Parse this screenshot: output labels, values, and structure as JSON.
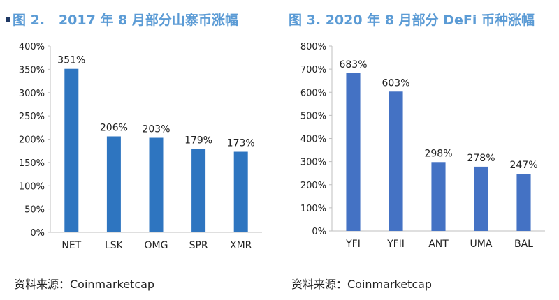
{
  "colors": {
    "title": "#5b9bd5",
    "bar_left": "#2e75c0",
    "bar_right": "#4472c4",
    "axis": "#bfbfbf"
  },
  "left": {
    "title_prefix": "图 2.",
    "title_text": "2017 年 8 月部分山寨币涨幅",
    "source": "资料来源：Coinmarketcap"
  },
  "right": {
    "title_prefix": "图 3.",
    "title_text": "2020 年 8 月部分 DeFi 币种涨幅",
    "source": "资料来源：Coinmarketcap"
  },
  "chart_data": [
    {
      "type": "bar",
      "title": "图 2. 2017 年 8 月部分山寨币涨幅",
      "categories": [
        "NET",
        "LSK",
        "OMG",
        "SPR",
        "XMR"
      ],
      "values": [
        351,
        206,
        203,
        179,
        173
      ],
      "data_labels": [
        "351%",
        "206%",
        "203%",
        "179%",
        "173%"
      ],
      "yticks": [
        "0%",
        "50%",
        "100%",
        "150%",
        "200%",
        "250%",
        "300%",
        "350%",
        "400%"
      ],
      "ylim": [
        0,
        400
      ],
      "grid": false,
      "legend": "none"
    },
    {
      "type": "bar",
      "title": "图 3. 2020 年 8 月部分 DeFi 币种涨幅",
      "categories": [
        "YFI",
        "YFII",
        "ANT",
        "UMA",
        "BAL"
      ],
      "values": [
        683,
        603,
        298,
        278,
        247
      ],
      "data_labels": [
        "683%",
        "603%",
        "298%",
        "278%",
        "247%"
      ],
      "yticks": [
        "0%",
        "100%",
        "200%",
        "300%",
        "400%",
        "500%",
        "600%",
        "700%",
        "800%"
      ],
      "ylim": [
        0,
        800
      ],
      "grid": false,
      "legend": "none"
    }
  ]
}
